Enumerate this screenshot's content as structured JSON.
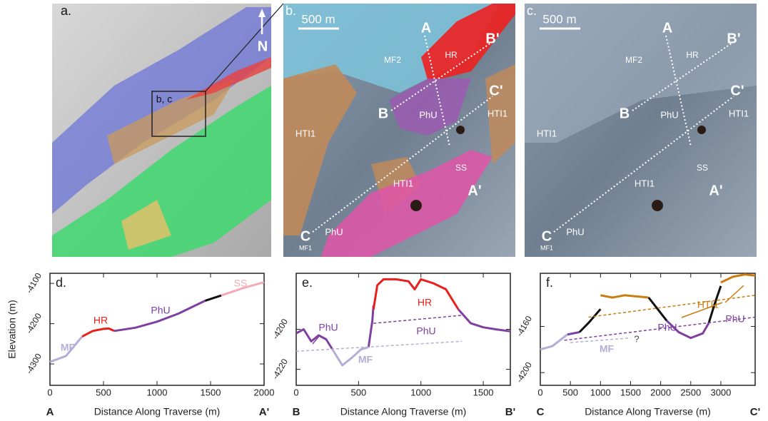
{
  "maps": [
    {
      "panel": "a.",
      "labels": [
        "b, c",
        "N"
      ]
    },
    {
      "panel": "b.",
      "scale": "500 m",
      "labels": [
        "A",
        "B'",
        "MF2",
        "HR",
        "B",
        "PhU",
        "C'",
        "HTI1",
        "HTI1",
        "HTI1",
        "SS",
        "A'",
        "C",
        "PhU",
        "MF1"
      ]
    },
    {
      "panel": "c.",
      "scale": "500 m",
      "labels": [
        "A",
        "B'",
        "MF2",
        "HR",
        "B",
        "PhU",
        "C'",
        "HTI1",
        "HTI1",
        "HTI1",
        "SS",
        "A'",
        "C",
        "PhU",
        "MF1"
      ]
    }
  ],
  "chart_data": [
    {
      "type": "line",
      "panel": "d.",
      "y_label": "Elevation (m)",
      "x_label": "Distance Along Traverse (m)",
      "start_label": "A",
      "end_label": "A'",
      "xlim": [
        0,
        2000
      ],
      "xticks": [
        0,
        500,
        1000,
        1500,
        2000
      ],
      "ylim": [
        -4353,
        -4075
      ],
      "yticks": [
        -4300,
        -4200,
        -4100
      ],
      "series": [
        {
          "name": "MF",
          "color": "#b4aed6",
          "x": [
            0,
            150,
            300
          ],
          "values": [
            -4295,
            -4280,
            -4232
          ]
        },
        {
          "name": "HR",
          "color": "#e8201c",
          "x": [
            300,
            400,
            500,
            550,
            600
          ],
          "values": [
            -4232,
            -4218,
            -4213,
            -4212,
            -4218
          ]
        },
        {
          "name": "PhU",
          "color": "#7e3fa0",
          "x": [
            600,
            800,
            1000,
            1200,
            1450
          ],
          "values": [
            -4218,
            -4210,
            -4195,
            -4175,
            -4143
          ]
        },
        {
          "color": "#111111",
          "x": [
            1450,
            1600
          ],
          "values": [
            -4143,
            -4130
          ]
        },
        {
          "name": "SS",
          "color": "#f4aab4",
          "x": [
            1600,
            1800,
            2000
          ],
          "values": [
            -4130,
            -4112,
            -4097
          ]
        }
      ]
    },
    {
      "type": "line",
      "panel": "e.",
      "x_label": "Distance Along Traverse (m)",
      "start_label": "B",
      "end_label": "B'",
      "xlim": [
        0,
        1717
      ],
      "xticks": [
        0,
        500,
        1000,
        1500
      ],
      "ylim": [
        -4228,
        -4172
      ],
      "yticks": [
        -4200,
        -4220
      ],
      "series": [
        {
          "name": "PhU",
          "color": "#7e3fa0",
          "x": [
            0,
            60,
            120,
            180,
            240,
            290
          ],
          "values": [
            -4202,
            -4200,
            -4206,
            -4203,
            -4205,
            -4210
          ]
        },
        {
          "name": "MF",
          "color": "#b4aed6",
          "x": [
            290,
            370,
            450,
            520,
            580
          ],
          "values": [
            -4210,
            -4218,
            -4214,
            -4210,
            -4209
          ]
        },
        {
          "color": "#7e3fa0",
          "x": [
            580,
            610,
            620
          ],
          "values": [
            -4209,
            -4196,
            -4188
          ]
        },
        {
          "name": "HR",
          "color": "#e8201c",
          "x": [
            620,
            650,
            700,
            800,
            900,
            950,
            1000,
            1100,
            1200,
            1300
          ],
          "values": [
            -4190,
            -4178,
            -4175,
            -4175,
            -4176,
            -4180,
            -4175,
            -4177,
            -4180,
            -4190
          ]
        },
        {
          "name": "PhU",
          "color": "#7e3fa0",
          "x": [
            1300,
            1400,
            1500,
            1600,
            1717
          ],
          "values": [
            -4190,
            -4197,
            -4199,
            -4200,
            -4201
          ]
        },
        {
          "color": "#7e3fa0",
          "dashed": true,
          "x": [
            620,
            1330
          ],
          "values": [
            -4197,
            -4193
          ]
        },
        {
          "color": "#b4aed6",
          "dashed": true,
          "x": [
            0,
            1330
          ],
          "values": [
            -4211,
            -4206
          ]
        }
      ]
    },
    {
      "type": "line",
      "panel": "f.",
      "x_label": "Distance Along Traverse (m)",
      "start_label": "C",
      "end_label": "C'",
      "xlim": [
        0,
        3570
      ],
      "xticks": [
        0,
        500,
        1000,
        1500,
        2000,
        2500,
        3000
      ],
      "ylim": [
        -4211,
        -4114
      ],
      "yticks": [
        -4160,
        -4200
      ],
      "annotations": [
        "?"
      ],
      "series": [
        {
          "name": "MF",
          "color": "#b4aed6",
          "x": [
            0,
            200,
            450
          ],
          "values": [
            -4180,
            -4177,
            -4167
          ]
        },
        {
          "color": "#7e3fa0",
          "x": [
            450,
            650
          ],
          "values": [
            -4167,
            -4165
          ]
        },
        {
          "color": "#111111",
          "x": [
            650,
            800,
            1000
          ],
          "values": [
            -4165,
            -4157,
            -4145
          ]
        },
        {
          "name": "HTI1",
          "color": "#c87d10",
          "x": [
            1000,
            1200,
            1400,
            1600,
            1800
          ],
          "values": [
            -4133,
            -4135,
            -4133,
            -4134,
            -4135
          ]
        },
        {
          "color": "#111111",
          "x": [
            1800,
            1950,
            2100
          ],
          "values": [
            -4135,
            -4145,
            -4155
          ]
        },
        {
          "name": "PhU",
          "color": "#7e3fa0",
          "x": [
            2100,
            2300,
            2500,
            2700,
            2800
          ],
          "values": [
            -4155,
            -4165,
            -4170,
            -4166,
            -4157
          ]
        },
        {
          "color": "#111111",
          "x": [
            2800,
            2900,
            3000
          ],
          "values": [
            -4157,
            -4140,
            -4125
          ]
        },
        {
          "color": "#c87d10",
          "x": [
            3000,
            3200,
            3400,
            3570
          ],
          "values": [
            -4122,
            -4117,
            -4115,
            -4116
          ]
        },
        {
          "color": "#c87d10",
          "dashed": true,
          "x": [
            800,
            3570
          ],
          "values": [
            -4152,
            -4133
          ]
        },
        {
          "name": "PhU",
          "color": "#7e3fa0",
          "dashed": true,
          "x": [
            400,
            3570
          ],
          "values": [
            -4172,
            -4152
          ]
        },
        {
          "color": "#b4aed6",
          "dashed": true,
          "x": [
            500,
            1500
          ],
          "values": [
            -4174,
            -4170
          ]
        }
      ]
    }
  ]
}
